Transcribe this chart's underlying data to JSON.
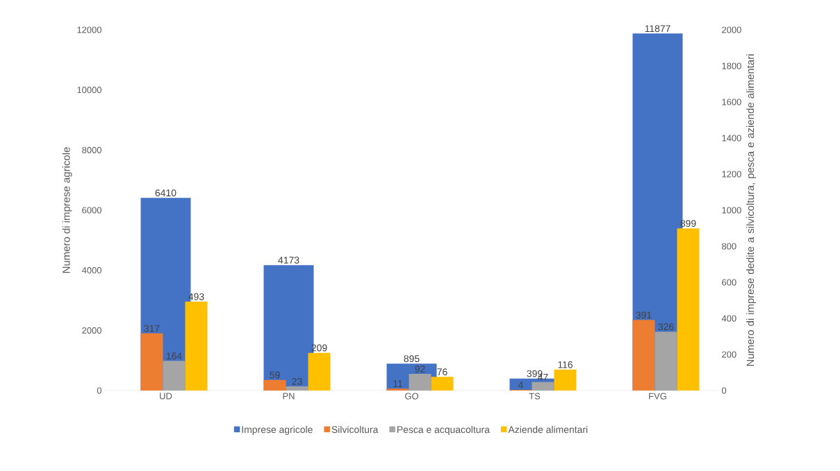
{
  "chart_data": {
    "type": "bar",
    "categories": [
      "UD",
      "PN",
      "GO",
      "TS",
      "FVG"
    ],
    "ylabel": "Numero di imprese agricole",
    "y2label": "Numero di imprese dedite a silvicoltura, pesca e aziende alimentari",
    "series": [
      {
        "name": "Imprese agricole",
        "color": "#4472c4",
        "values": [
          6410,
          4173,
          895,
          399,
          11877
        ]
      },
      {
        "name": "Silvicoltura",
        "color": "#ed7d31",
        "axis": "y2",
        "values": [
          317,
          59,
          11,
          4,
          391
        ]
      },
      {
        "name": "Pesca e acquacoltura",
        "color": "#a5a5a5",
        "axis": "y2",
        "values": [
          164,
          23,
          92,
          47,
          326
        ]
      },
      {
        "name": "Aziende alimentari",
        "color": "#ffc000",
        "axis": "y2",
        "values": [
          493,
          209,
          76,
          116,
          899
        ]
      }
    ],
    "ylim": [
      0,
      12000
    ],
    "yticks": [
      0,
      2000,
      4000,
      6000,
      8000,
      10000,
      12000
    ],
    "y2lim": [
      0,
      2000
    ],
    "y2ticks": [
      0,
      200,
      400,
      600,
      800,
      1000,
      1200,
      1400,
      1600,
      1800,
      2000
    ],
    "data_labels": true,
    "legend": "bottom",
    "grid": false
  }
}
